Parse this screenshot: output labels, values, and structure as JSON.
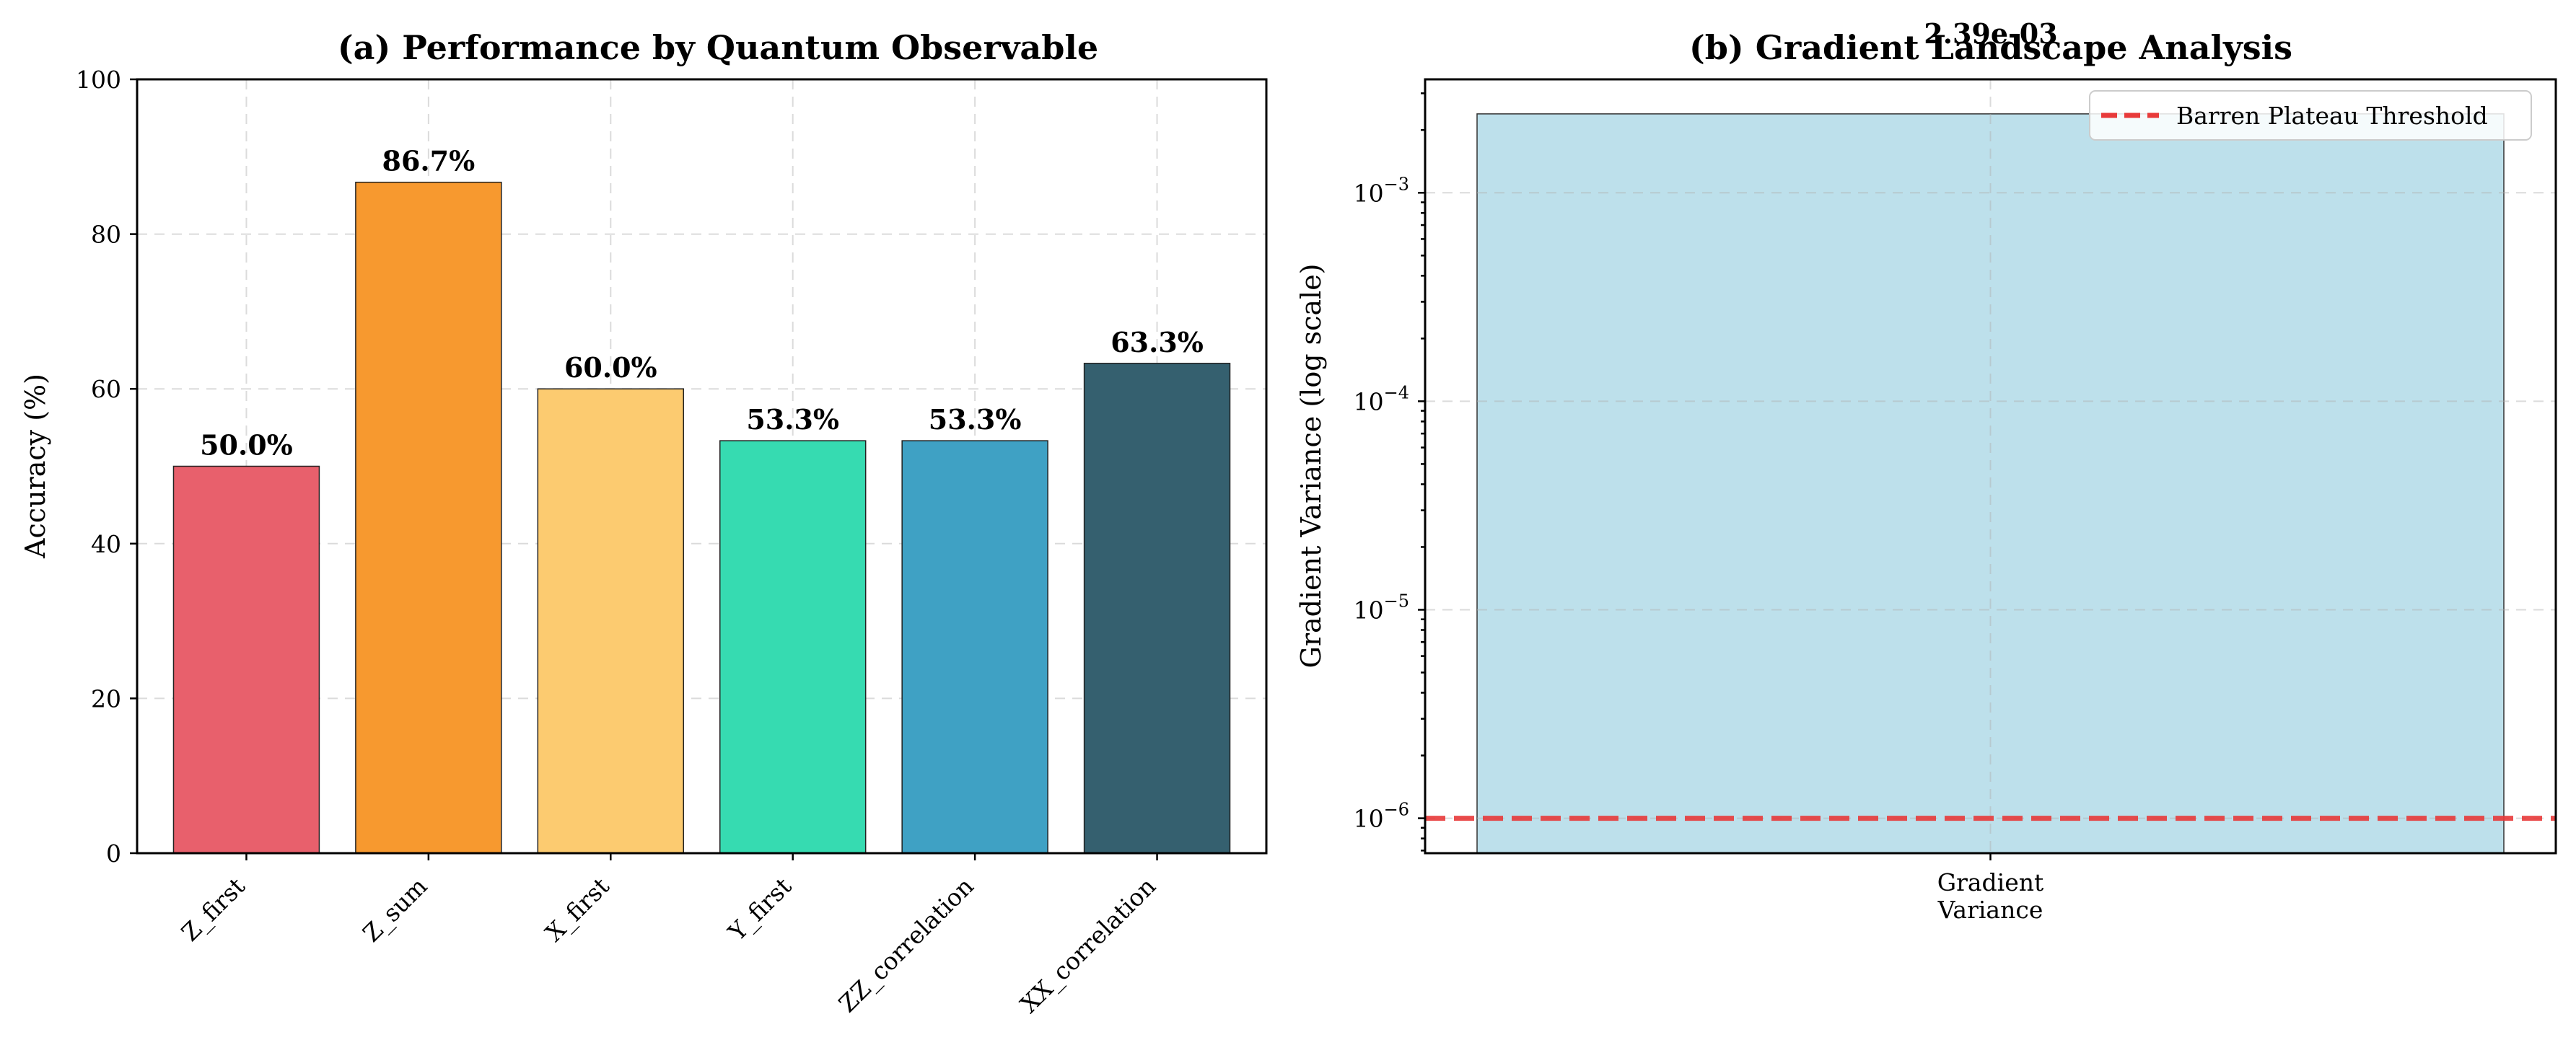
{
  "chart_data": [
    {
      "type": "bar",
      "title": "(a) Performance by Quantum Observable",
      "xlabel": "",
      "ylabel": "Accuracy (%)",
      "ylim": [
        0,
        100
      ],
      "yticks": [
        0,
        20,
        40,
        60,
        80,
        100
      ],
      "grid": true,
      "categories": [
        "Z_first",
        "Z_sum",
        "X_first",
        "Y_first",
        "ZZ_correlation",
        "XX_correlation"
      ],
      "values": [
        50.0,
        86.7,
        60.0,
        53.3,
        53.3,
        63.3
      ],
      "value_labels": [
        "50.0%",
        "86.7%",
        "60.0%",
        "53.3%",
        "53.3%",
        "63.3%"
      ],
      "colors": [
        "#e8606c",
        "#f7992f",
        "#fccb70",
        "#36dbb1",
        "#3fa1c4",
        "#35606f"
      ]
    },
    {
      "type": "bar",
      "title": "(b) Gradient Landscape Analysis",
      "xlabel": "",
      "ylabel": "Gradient Variance (log scale)",
      "yscale": "log",
      "ylim": [
        6.8e-07,
        0.0035
      ],
      "yticks": [
        1e-06,
        1e-05,
        0.0001,
        0.001
      ],
      "ytick_labels": [
        {
          "base": "10",
          "exp": "−6"
        },
        {
          "base": "10",
          "exp": "−5"
        },
        {
          "base": "10",
          "exp": "−4"
        },
        {
          "base": "10",
          "exp": "−3"
        }
      ],
      "grid": true,
      "categories": [
        "Gradient\nVariance"
      ],
      "values": [
        0.00239
      ],
      "value_labels": [
        "2.39e-03"
      ],
      "colors": [
        "#add8e6"
      ],
      "threshold": {
        "value": 1e-06,
        "label": "Barren Plateau Threshold",
        "color": "#e83a3a"
      },
      "legend_position": "top-right"
    }
  ]
}
